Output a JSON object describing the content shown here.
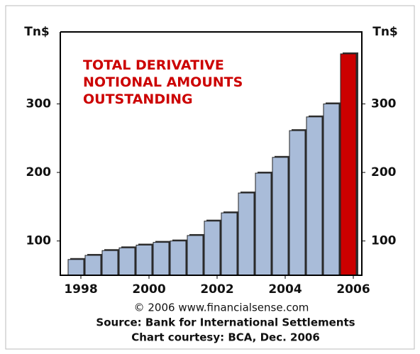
{
  "chart_data": {
    "type": "bar",
    "title": "TOTAL DERIVATIVE NOTIONAL AMOUNTS OUTSTANDING",
    "y_label": "Tn$",
    "categories": [
      "1998",
      null,
      null,
      null,
      "2000",
      null,
      null,
      null,
      "2002",
      null,
      null,
      null,
      "2004",
      null,
      null,
      null,
      "2006"
    ],
    "values": [
      73,
      79,
      86,
      90,
      94,
      98,
      100,
      108,
      129,
      141,
      170,
      199,
      222,
      261,
      281,
      300,
      373
    ],
    "colors": [
      "#a9bcd9",
      "#a9bcd9",
      "#a9bcd9",
      "#a9bcd9",
      "#a9bcd9",
      "#a9bcd9",
      "#a9bcd9",
      "#a9bcd9",
      "#a9bcd9",
      "#a9bcd9",
      "#a9bcd9",
      "#a9bcd9",
      "#a9bcd9",
      "#a9bcd9",
      "#a9bcd9",
      "#a9bcd9",
      "#cc0000"
    ],
    "ylim": [
      50,
      405
    ],
    "yticks": [
      100,
      200,
      300
    ],
    "footer": [
      "© 2006 www.financialsense.com",
      "Source: Bank for International Settlements",
      "Chart courtesy: BCA, Dec. 2006"
    ]
  }
}
